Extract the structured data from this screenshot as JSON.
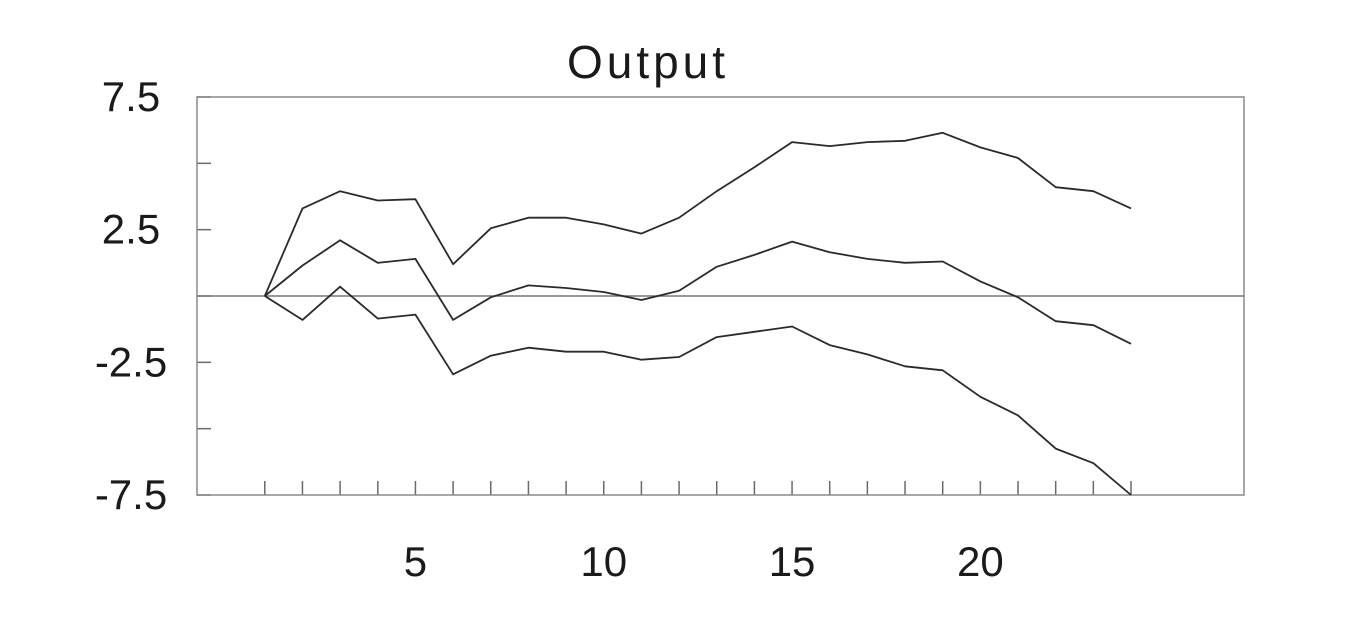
{
  "chart_data": {
    "type": "line",
    "title": "Output",
    "xlabel": "",
    "ylabel": "",
    "xlim": [
      -0.8,
      27
    ],
    "ylim": [
      -7.5,
      7.5
    ],
    "y_ticks": [
      7.5,
      5,
      2.5,
      0,
      -2.5,
      -5,
      -7.5
    ],
    "y_tick_labels": [
      {
        "value": 7.5,
        "label": "7.5"
      },
      {
        "value": 2.5,
        "label": "2.5"
      },
      {
        "value": -2.5,
        "label": "-2.5"
      },
      {
        "value": -7.5,
        "label": "-7.5"
      }
    ],
    "x_ticks": [
      1,
      2,
      3,
      4,
      5,
      6,
      7,
      8,
      9,
      10,
      11,
      12,
      13,
      14,
      15,
      16,
      17,
      18,
      19,
      20,
      21,
      22,
      23,
      24
    ],
    "x_tick_labels": [
      {
        "value": 5,
        "label": "5"
      },
      {
        "value": 10,
        "label": "10"
      },
      {
        "value": 15,
        "label": "15"
      },
      {
        "value": 20,
        "label": "20"
      }
    ],
    "zero_line": true,
    "grid": false,
    "x": [
      1,
      2,
      3,
      4,
      5,
      6,
      7,
      8,
      9,
      10,
      11,
      12,
      13,
      14,
      15,
      16,
      17,
      18,
      19,
      20,
      21,
      22,
      23,
      24
    ],
    "series": [
      {
        "values": [
          0,
          3.3,
          3.95,
          3.6,
          3.65,
          1.2,
          2.55,
          2.95,
          2.95,
          2.7,
          2.35,
          2.95,
          3.95,
          4.85,
          5.8,
          5.65,
          5.8,
          5.85,
          6.15,
          5.6,
          5.2,
          4.1,
          3.95,
          3.3
        ]
      },
      {
        "values": [
          0,
          1.15,
          2.1,
          1.25,
          1.4,
          -0.9,
          -0.05,
          0.4,
          0.3,
          0.15,
          -0.15,
          0.2,
          1.1,
          1.55,
          2.05,
          1.65,
          1.4,
          1.25,
          1.3,
          0.55,
          -0.05,
          -0.95,
          -1.1,
          -1.8
        ]
      },
      {
        "values": [
          0,
          -0.9,
          0.35,
          -0.85,
          -0.7,
          -2.95,
          -2.25,
          -1.95,
          -2.1,
          -2.1,
          -2.4,
          -2.3,
          -1.55,
          -1.35,
          -1.15,
          -1.85,
          -2.2,
          -2.65,
          -2.8,
          -3.8,
          -4.5,
          -5.75,
          -6.3,
          -7.5
        ]
      }
    ]
  }
}
